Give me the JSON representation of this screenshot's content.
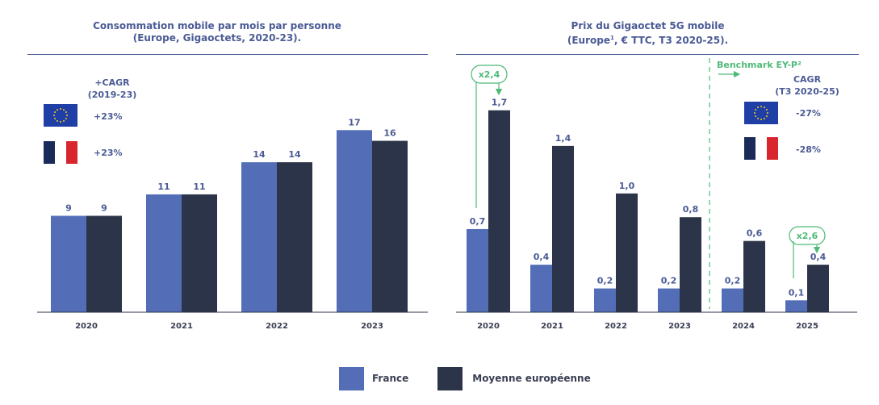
{
  "colors": {
    "france": "#536eb7",
    "europe": "#2b3448",
    "accent": "#4fb978",
    "text": "#4a5a94"
  },
  "legend": {
    "france": "France",
    "europe": "Moyenne européenne"
  },
  "chart_data": [
    {
      "type": "bar",
      "title": "Consommation mobile par mois par personne",
      "subtitle": "(Europe, Gigaoctets, 2020-23).",
      "categories": [
        "2020",
        "2021",
        "2022",
        "2023"
      ],
      "series": [
        {
          "name": "France",
          "values": [
            9,
            11,
            14,
            17
          ],
          "labels": [
            "9",
            "11",
            "14",
            "17"
          ]
        },
        {
          "name": "Moyenne européenne",
          "values": [
            9,
            11,
            14,
            16
          ],
          "labels": [
            "9",
            "11",
            "14",
            "16"
          ]
        }
      ],
      "ylim": [
        0,
        18
      ],
      "cagr": {
        "header_line1": "+CAGR",
        "header_line2": "(2019-23)",
        "eu_value": "+23%",
        "fr_value": "+23%"
      }
    },
    {
      "type": "bar",
      "title": "Prix du Gigaoctet 5G mobile",
      "subtitle_part1": "(Europe",
      "subtitle_sup": "1",
      "subtitle_part2": ", € TTC, T3 2020-25).",
      "categories": [
        "2020",
        "2021",
        "2022",
        "2023",
        "2024",
        "2025"
      ],
      "series": [
        {
          "name": "France",
          "values": [
            0.7,
            0.4,
            0.2,
            0.2,
            0.2,
            0.1
          ],
          "labels": [
            "0,7",
            "0,4",
            "0,2",
            "0,2",
            "0,2",
            "0,1"
          ]
        },
        {
          "name": "Moyenne européenne",
          "values": [
            1.7,
            1.4,
            1.0,
            0.8,
            0.6,
            0.4
          ],
          "labels": [
            "1,7",
            "1,4",
            "1,0",
            "0,8",
            "0,6",
            "0,4"
          ]
        }
      ],
      "ylim": [
        0,
        1.8
      ],
      "annotations": {
        "ratio_2020": "x2,4",
        "ratio_2025": "x2,6",
        "benchmark_label": "Benchmark EY-P²"
      },
      "cagr": {
        "header_line1": "CAGR",
        "header_line2": "(T3 2020-25)",
        "eu_value": "-27%",
        "fr_value": "-28%"
      }
    }
  ]
}
